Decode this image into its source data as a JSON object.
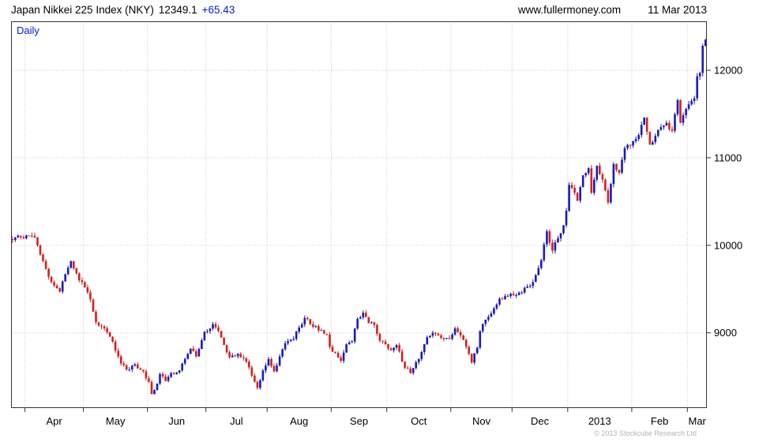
{
  "header": {
    "title": "Japan Nikkei 225 Index (NKY)",
    "last_price": "12349.1",
    "change": "+65.43",
    "website": "www.fullermoney.com",
    "date": "11 Mar 2013"
  },
  "chart": {
    "frequency_label": "Daily",
    "copyright": "© 2013 Stockcube Research Ltd"
  },
  "colors": {
    "accent_blue": "#0022cc",
    "up_candle": "#1a1ab8",
    "down_candle": "#d42020",
    "grid": "#c8c8c8",
    "frame": "#333333"
  },
  "chart_data": {
    "type": "candlestick",
    "title": "Japan Nikkei 225 Index (NKY) Daily",
    "ylim": [
      8140,
      12560
    ],
    "y_ticks": [
      9000,
      10000,
      11000,
      12000
    ],
    "x_labels": [
      "Apr",
      "May",
      "Jun",
      "Jul",
      "Aug",
      "Sep",
      "Oct",
      "Nov",
      "Dec",
      "2013",
      "Feb",
      "Mar"
    ],
    "month_boundaries": [
      5,
      26,
      49,
      70,
      92,
      115,
      135,
      158,
      180,
      200,
      223,
      243
    ],
    "num_days": 250,
    "legend": "none",
    "grid": "dotted",
    "up_color": "#1a1ab8",
    "down_color": "#d42020",
    "grid_color": "#c8c8c8",
    "anchors": [
      [
        0,
        10060
      ],
      [
        2,
        10110
      ],
      [
        4,
        10080
      ],
      [
        6,
        10110
      ],
      [
        8,
        10090
      ],
      [
        9,
        10000
      ],
      [
        11,
        9820
      ],
      [
        13,
        9640
      ],
      [
        15,
        9540
      ],
      [
        17,
        9470
      ],
      [
        19,
        9670
      ],
      [
        21,
        9820
      ],
      [
        23,
        9680
      ],
      [
        24,
        9600
      ],
      [
        26,
        9520
      ],
      [
        28,
        9380
      ],
      [
        30,
        9120
      ],
      [
        33,
        9050
      ],
      [
        36,
        8900
      ],
      [
        39,
        8650
      ],
      [
        41,
        8580
      ],
      [
        44,
        8640
      ],
      [
        47,
        8560
      ],
      [
        49,
        8440
      ],
      [
        50,
        8300
      ],
      [
        52,
        8420
      ],
      [
        53,
        8530
      ],
      [
        55,
        8450
      ],
      [
        57,
        8540
      ],
      [
        60,
        8570
      ],
      [
        62,
        8700
      ],
      [
        64,
        8820
      ],
      [
        66,
        8730
      ],
      [
        69,
        9010
      ],
      [
        72,
        9100
      ],
      [
        74,
        9020
      ],
      [
        76,
        8860
      ],
      [
        78,
        8720
      ],
      [
        81,
        8760
      ],
      [
        84,
        8670
      ],
      [
        86,
        8510
      ],
      [
        88,
        8370
      ],
      [
        90,
        8570
      ],
      [
        92,
        8700
      ],
      [
        94,
        8560
      ],
      [
        96,
        8730
      ],
      [
        98,
        8880
      ],
      [
        101,
        8930
      ],
      [
        103,
        9060
      ],
      [
        105,
        9170
      ],
      [
        108,
        9070
      ],
      [
        111,
        9030
      ],
      [
        113,
        8980
      ],
      [
        114,
        8840
      ],
      [
        116,
        8770
      ],
      [
        118,
        8680
      ],
      [
        120,
        8870
      ],
      [
        122,
        8900
      ],
      [
        124,
        9160
      ],
      [
        126,
        9230
      ],
      [
        128,
        9110
      ],
      [
        130,
        9090
      ],
      [
        132,
        8910
      ],
      [
        134,
        8870
      ],
      [
        136,
        8800
      ],
      [
        138,
        8860
      ],
      [
        141,
        8600
      ],
      [
        143,
        8540
      ],
      [
        146,
        8700
      ],
      [
        149,
        8950
      ],
      [
        151,
        9000
      ],
      [
        153,
        8970
      ],
      [
        155,
        8930
      ],
      [
        157,
        8930
      ],
      [
        159,
        9050
      ],
      [
        161,
        8970
      ],
      [
        163,
        8840
      ],
      [
        165,
        8660
      ],
      [
        167,
        8830
      ],
      [
        168,
        9020
      ],
      [
        170,
        9150
      ],
      [
        172,
        9220
      ],
      [
        175,
        9390
      ],
      [
        178,
        9420
      ],
      [
        179,
        9446
      ],
      [
        181,
        9430
      ],
      [
        183,
        9460
      ],
      [
        185,
        9530
      ],
      [
        187,
        9580
      ],
      [
        189,
        9740
      ],
      [
        190,
        9830
      ],
      [
        192,
        10160
      ],
      [
        194,
        9940
      ],
      [
        196,
        10080
      ],
      [
        198,
        10230
      ],
      [
        199,
        10395
      ],
      [
        200,
        10690
      ],
      [
        202,
        10600
      ],
      [
        203,
        10510
      ],
      [
        205,
        10800
      ],
      [
        207,
        10880
      ],
      [
        208,
        10600
      ],
      [
        210,
        10910
      ],
      [
        212,
        10750
      ],
      [
        214,
        10490
      ],
      [
        216,
        10930
      ],
      [
        218,
        10830
      ],
      [
        220,
        11110
      ],
      [
        222,
        11140
      ],
      [
        223,
        11190
      ],
      [
        225,
        11260
      ],
      [
        227,
        11460
      ],
      [
        229,
        11150
      ],
      [
        231,
        11250
      ],
      [
        233,
        11350
      ],
      [
        235,
        11400
      ],
      [
        237,
        11310
      ],
      [
        239,
        11660
      ],
      [
        240,
        11400
      ],
      [
        242,
        11560
      ],
      [
        243,
        11610
      ],
      [
        244,
        11650
      ],
      [
        245,
        11680
      ],
      [
        246,
        11930
      ],
      [
        247,
        11970
      ],
      [
        248,
        12280
      ],
      [
        249,
        12349.1
      ]
    ],
    "noise": {
      "seed": 42,
      "close_jitter": 0.0025,
      "range_frac": 0.006
    }
  }
}
